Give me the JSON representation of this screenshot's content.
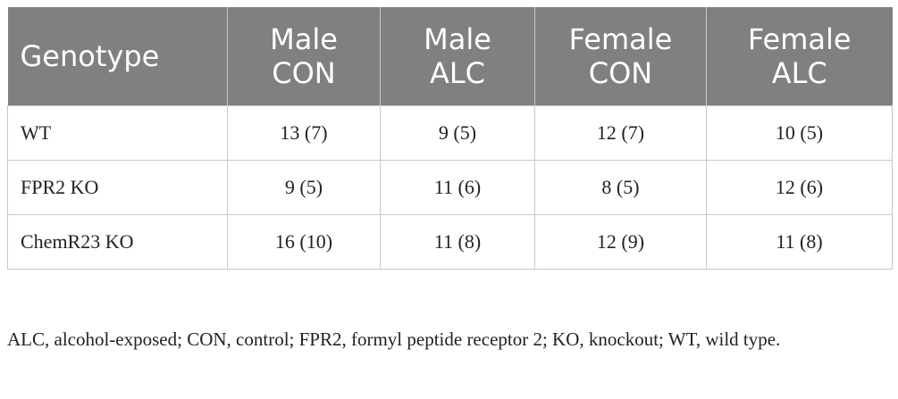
{
  "table": {
    "header": [
      "Genotype",
      "Male CON",
      "Male ALC",
      "Female CON",
      "Female ALC"
    ],
    "rows": [
      [
        "WT",
        "13 (7)",
        "9 (5)",
        "12 (7)",
        "10 (5)"
      ],
      [
        "FPR2 KO",
        "9 (5)",
        "11 (6)",
        "8 (5)",
        "12 (6)"
      ],
      [
        "ChemR23 KO",
        "16 (10)",
        "11 (8)",
        "12 (9)",
        "11 (8)"
      ]
    ]
  },
  "footnote": "ALC, alcohol-exposed; CON, control; FPR2, formyl peptide receptor 2; KO, knockout; WT, wild type."
}
